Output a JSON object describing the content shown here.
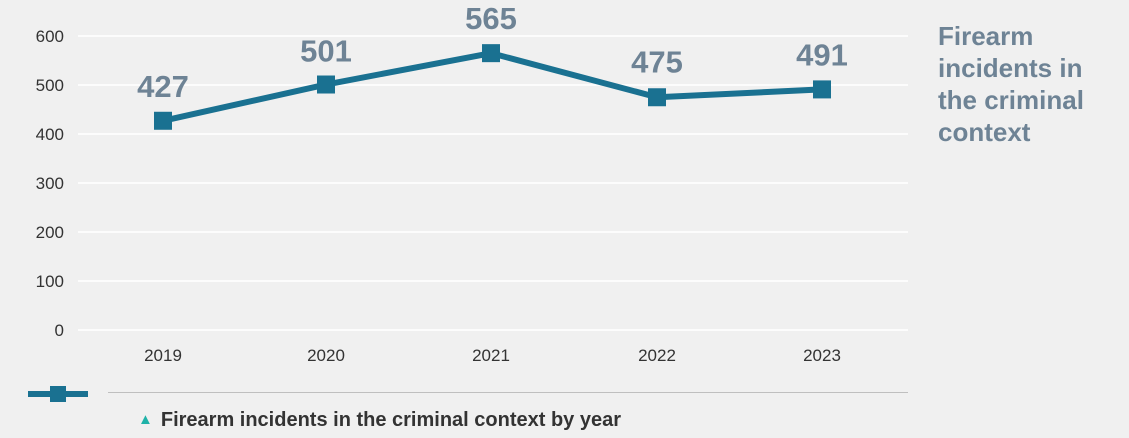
{
  "chart_data": {
    "type": "line",
    "categories": [
      "2019",
      "2020",
      "2021",
      "2022",
      "2023"
    ],
    "series": [
      {
        "name": "Firearm incidents in the criminal context by year",
        "values": [
          427,
          501,
          565,
          475,
          491
        ]
      }
    ],
    "title": "Firearm incidents in the criminal context",
    "ylim": [
      0,
      600
    ],
    "yticks": [
      0,
      100,
      200,
      300,
      400,
      500,
      600
    ],
    "grid": true,
    "legend_position": "bottom"
  },
  "colors": {
    "line": "#1a7191",
    "grid": "#ffffff",
    "label": "#6e8395",
    "background": "#f0f0f0",
    "arrow": "#1fb2a8"
  },
  "caption": {
    "arrow_icon": "triangle-up-icon",
    "text": "Firearm incidents in the criminal context by year"
  }
}
